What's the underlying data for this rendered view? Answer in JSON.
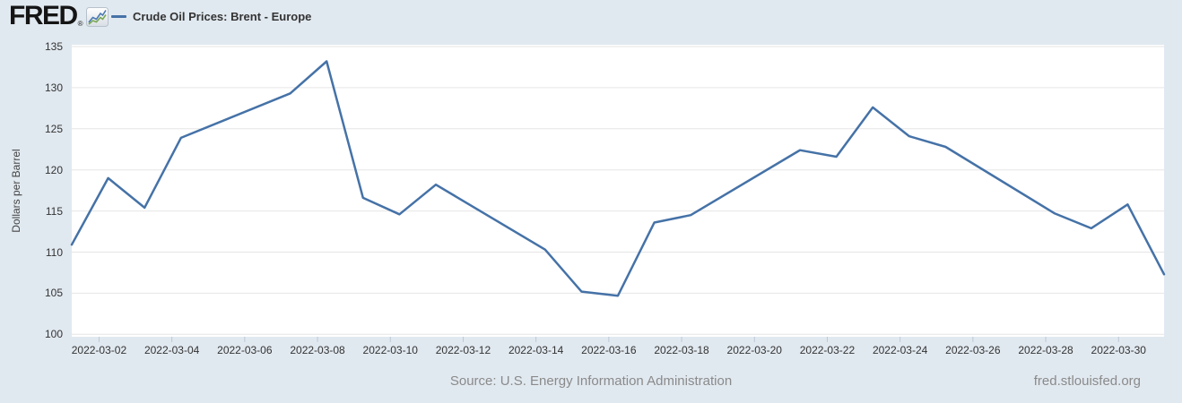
{
  "header": {
    "logo_text": "FRED",
    "registered_mark": "®",
    "legend": {
      "label": "Crude Oil Prices: Brent - Europe",
      "marker_color": "#4572a7"
    }
  },
  "chart_data": {
    "type": "line",
    "title": "Crude Oil Prices: Brent - Europe",
    "series_name": "Crude Oil Prices: Brent - Europe",
    "ylabel": "Dollars per Barrel",
    "xlabel": "",
    "ylim": [
      100,
      135
    ],
    "y_ticks": [
      100,
      105,
      110,
      115,
      120,
      125,
      130,
      135
    ],
    "x_range": [
      "2022-03-01",
      "2022-03-31"
    ],
    "x_ticks": [
      "2022-03-02",
      "2022-03-04",
      "2022-03-06",
      "2022-03-08",
      "2022-03-10",
      "2022-03-12",
      "2022-03-14",
      "2022-03-16",
      "2022-03-18",
      "2022-03-20",
      "2022-03-22",
      "2022-03-24",
      "2022-03-26",
      "2022-03-28",
      "2022-03-30"
    ],
    "x": [
      "2022-03-01",
      "2022-03-02",
      "2022-03-03",
      "2022-03-04",
      "2022-03-07",
      "2022-03-08",
      "2022-03-09",
      "2022-03-10",
      "2022-03-11",
      "2022-03-14",
      "2022-03-15",
      "2022-03-16",
      "2022-03-17",
      "2022-03-18",
      "2022-03-21",
      "2022-03-22",
      "2022-03-23",
      "2022-03-24",
      "2022-03-25",
      "2022-03-28",
      "2022-03-29",
      "2022-03-30",
      "2022-03-31"
    ],
    "values": [
      110.9,
      119.0,
      115.4,
      123.9,
      129.3,
      133.2,
      116.6,
      114.6,
      118.2,
      110.3,
      105.2,
      104.7,
      113.6,
      114.5,
      122.4,
      121.6,
      127.6,
      124.1,
      122.8,
      114.7,
      112.9,
      115.8,
      107.3
    ],
    "line_color": "#4572a7",
    "plot_background": "#ffffff",
    "grid_color": "#e6e6e6",
    "tick_mark_color": "#bcc8d6",
    "grid": "horizontal-only",
    "legend_position": "top-left"
  },
  "footer": {
    "source": "Source: U.S. Energy Information Administration",
    "site_link": "fred.stlouisfed.org"
  }
}
